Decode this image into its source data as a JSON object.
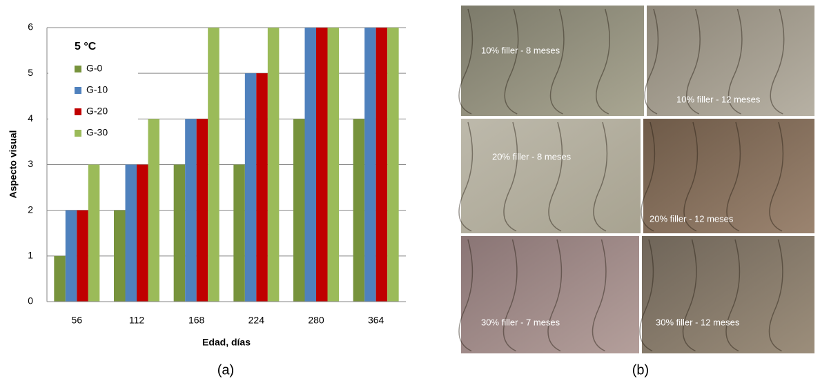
{
  "chart_data": {
    "type": "bar",
    "legend_title": "5 °C",
    "x_label": "Edad, días",
    "y_label": "Aspecto visual",
    "categories": [
      "56",
      "112",
      "168",
      "224",
      "280",
      "364"
    ],
    "series": [
      {
        "name": "G-0",
        "color": "#77933c",
        "values": [
          1,
          2,
          3,
          3,
          4,
          4
        ]
      },
      {
        "name": "G-10",
        "color": "#4f81bd",
        "values": [
          2,
          3,
          4,
          5,
          6,
          6
        ]
      },
      {
        "name": "G-20",
        "color": "#c00000",
        "values": [
          2,
          3,
          4,
          5,
          6,
          6
        ]
      },
      {
        "name": "G-30",
        "color": "#9bbb59",
        "values": [
          3,
          4,
          6,
          6,
          6,
          6
        ]
      }
    ],
    "ylim": [
      0,
      6
    ],
    "yticks": [
      0,
      1,
      2,
      3,
      4,
      5,
      6
    ],
    "grid": true,
    "legend": "upper left"
  },
  "photos": [
    {
      "label": "10%  filler - 8 meses"
    },
    {
      "label": "10%  filler - 12 meses"
    },
    {
      "label": "20%  filler - 8 meses"
    },
    {
      "label": "20%  filler - 12 meses"
    },
    {
      "label": "30%  filler - 7 meses"
    },
    {
      "label": "30%  filler - 12 meses"
    }
  ],
  "captions": [
    "(a)",
    "(b)"
  ]
}
